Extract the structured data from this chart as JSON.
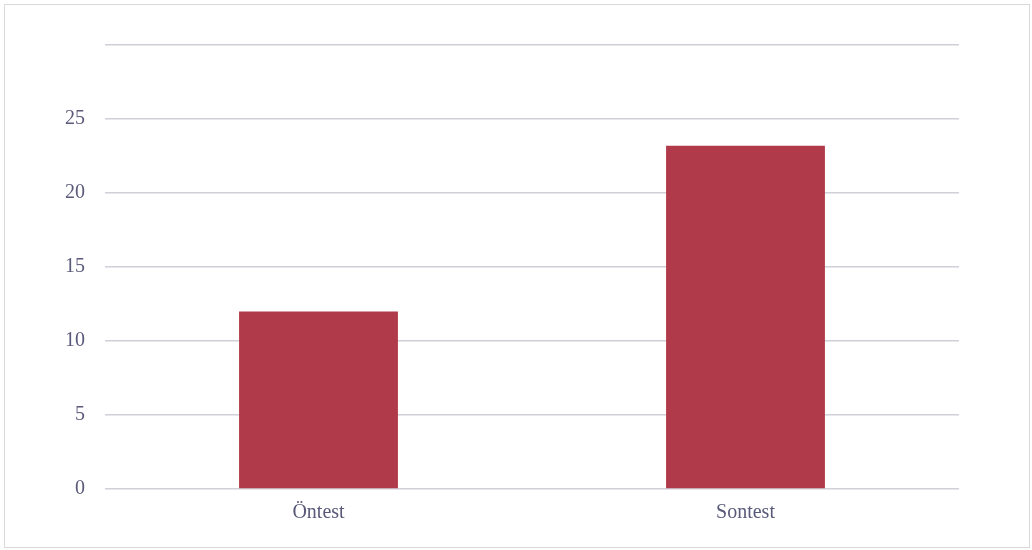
{
  "chart_data": {
    "type": "bar",
    "categories": [
      "Öntest",
      "Sontest"
    ],
    "values": [
      12,
      23.2
    ],
    "color": "#b03a4a",
    "ylim": [
      0,
      30
    ],
    "yticks": [
      0,
      5,
      10,
      15,
      20,
      25,
      {
        "value": 30,
        "label": null
      }
    ],
    "grid": "y",
    "legend": false
  }
}
